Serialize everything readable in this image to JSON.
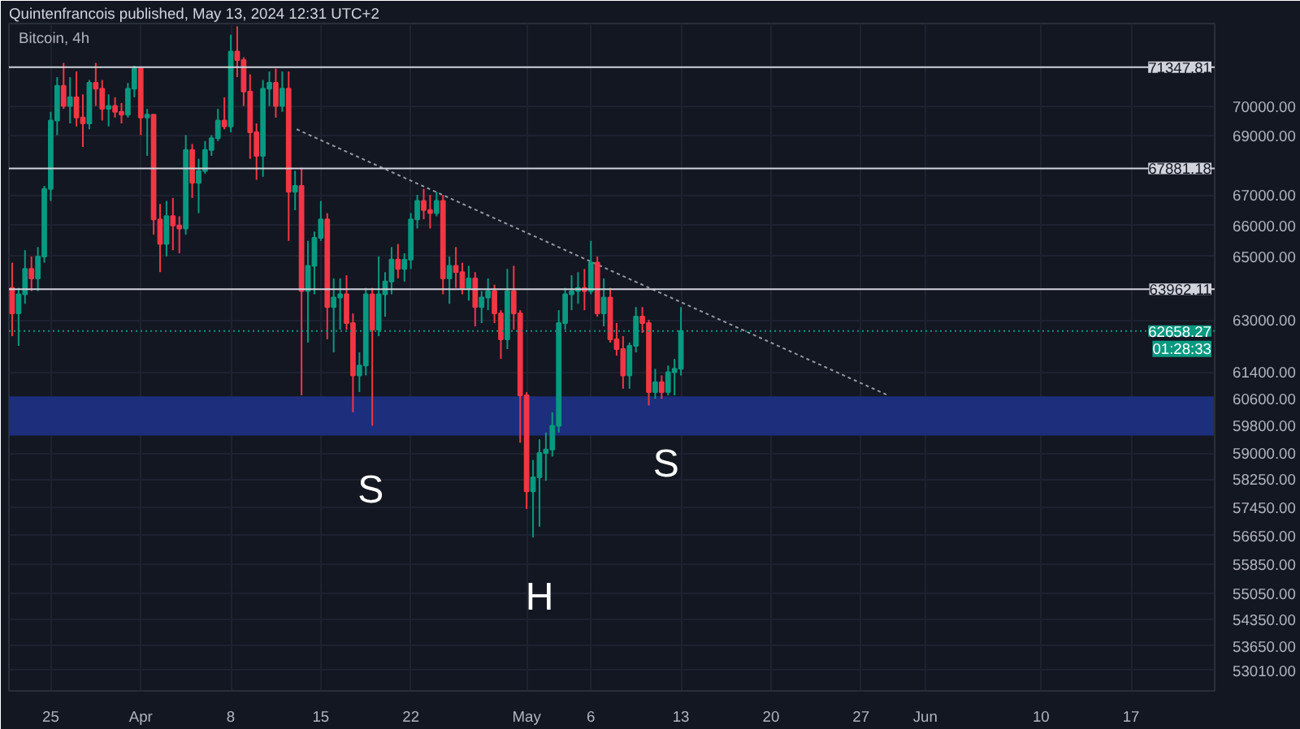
{
  "chart_data": {
    "type": "candlestick",
    "title": "Bitcoin, 4h",
    "annotations": [
      "Quintenfrancois published, May 13, 2024 12:31 UTC+2",
      "01:28:33",
      "S",
      "H",
      "S"
    ],
    "x": [
      "2024-03-22T00:00",
      "2024-03-22T12:00",
      "2024-03-23T00:00",
      "2024-03-23T12:00",
      "2024-03-24T00:00",
      "2024-03-24T12:00",
      "2024-03-25T00:00",
      "2024-03-25T12:00",
      "2024-03-26T00:00",
      "2024-03-26T12:00",
      "2024-03-27T00:00",
      "2024-03-27T12:00",
      "2024-03-28T00:00",
      "2024-03-28T12:00",
      "2024-03-29T00:00",
      "2024-03-29T12:00",
      "2024-03-30T00:00",
      "2024-03-30T12:00",
      "2024-03-31T00:00",
      "2024-03-31T12:00",
      "2024-04-01T00:00",
      "2024-04-01T12:00",
      "2024-04-02T00:00",
      "2024-04-02T12:00",
      "2024-04-03T00:00",
      "2024-04-03T12:00",
      "2024-04-04T00:00",
      "2024-04-04T12:00",
      "2024-04-05T00:00",
      "2024-04-05T12:00",
      "2024-04-06T00:00",
      "2024-04-06T12:00",
      "2024-04-07T00:00",
      "2024-04-07T12:00",
      "2024-04-08T00:00",
      "2024-04-08T12:00",
      "2024-04-09T00:00",
      "2024-04-09T12:00",
      "2024-04-10T00:00",
      "2024-04-10T12:00",
      "2024-04-11T00:00",
      "2024-04-11T12:00",
      "2024-04-12T00:00",
      "2024-04-12T12:00",
      "2024-04-13T00:00",
      "2024-04-13T12:00",
      "2024-04-14T00:00",
      "2024-04-14T12:00",
      "2024-04-15T00:00",
      "2024-04-15T12:00",
      "2024-04-16T00:00",
      "2024-04-16T12:00",
      "2024-04-17T00:00",
      "2024-04-17T12:00",
      "2024-04-18T00:00",
      "2024-04-18T12:00",
      "2024-04-19T00:00",
      "2024-04-19T12:00",
      "2024-04-20T00:00",
      "2024-04-20T12:00",
      "2024-04-21T00:00",
      "2024-04-21T12:00",
      "2024-04-22T00:00",
      "2024-04-22T12:00",
      "2024-04-23T00:00",
      "2024-04-23T12:00",
      "2024-04-24T00:00",
      "2024-04-24T12:00",
      "2024-04-25T00:00",
      "2024-04-25T12:00",
      "2024-04-26T00:00",
      "2024-04-26T12:00",
      "2024-04-27T00:00",
      "2024-04-27T12:00",
      "2024-04-28T00:00",
      "2024-04-28T12:00",
      "2024-04-29T00:00",
      "2024-04-29T12:00",
      "2024-04-30T00:00",
      "2024-04-30T12:00",
      "2024-05-01T00:00",
      "2024-05-01T12:00",
      "2024-05-02T00:00",
      "2024-05-02T12:00",
      "2024-05-03T00:00",
      "2024-05-03T12:00",
      "2024-05-04T00:00",
      "2024-05-04T12:00",
      "2024-05-05T00:00",
      "2024-05-05T12:00",
      "2024-05-06T00:00",
      "2024-05-06T12:00",
      "2024-05-07T00:00",
      "2024-05-07T12:00",
      "2024-05-08T00:00",
      "2024-05-08T12:00",
      "2024-05-09T00:00",
      "2024-05-09T12:00",
      "2024-05-10T00:00",
      "2024-05-10T12:00",
      "2024-05-11T00:00",
      "2024-05-11T12:00",
      "2024-05-12T00:00",
      "2024-05-12T12:00",
      "2024-05-13T00:00"
    ],
    "ohlc": [
      [
        64000,
        64800,
        62500,
        63200
      ],
      [
        63200,
        64000,
        62200,
        63800
      ],
      [
        63800,
        65200,
        63500,
        64600
      ],
      [
        64600,
        65000,
        63900,
        64300
      ],
      [
        64300,
        65300,
        63900,
        65000
      ],
      [
        65000,
        67300,
        64800,
        67200
      ],
      [
        67200,
        69800,
        66800,
        69500
      ],
      [
        69500,
        71000,
        69000,
        70700
      ],
      [
        70700,
        71500,
        69900,
        70000
      ],
      [
        70000,
        71000,
        69400,
        70300
      ],
      [
        70300,
        71200,
        69300,
        69600
      ],
      [
        69600,
        70400,
        68600,
        69400
      ],
      [
        69400,
        70900,
        69200,
        70800
      ],
      [
        70800,
        71500,
        70000,
        70600
      ],
      [
        70600,
        70900,
        69500,
        69900
      ],
      [
        69900,
        70400,
        69300,
        70000
      ],
      [
        70000,
        70300,
        69600,
        69800
      ],
      [
        69800,
        70100,
        69400,
        69700
      ],
      [
        69700,
        70800,
        69600,
        70600
      ],
      [
        70600,
        71400,
        70300,
        71300
      ],
      [
        71300,
        71300,
        69000,
        69600
      ],
      [
        69600,
        69900,
        68300,
        69700
      ],
      [
        69700,
        69700,
        65700,
        66200
      ],
      [
        66200,
        66700,
        64500,
        65400
      ],
      [
        65400,
        66800,
        65000,
        66300
      ],
      [
        66300,
        66900,
        65200,
        66000
      ],
      [
        66000,
        66300,
        65100,
        65900
      ],
      [
        65900,
        69000,
        65700,
        68500
      ],
      [
        68500,
        68700,
        66900,
        67400
      ],
      [
        67400,
        68200,
        66400,
        67800
      ],
      [
        67800,
        68800,
        67700,
        68500
      ],
      [
        68500,
        69000,
        68300,
        68900
      ],
      [
        68900,
        69900,
        68800,
        69500
      ],
      [
        69500,
        70300,
        69200,
        69300
      ],
      [
        69300,
        72500,
        69100,
        71900
      ],
      [
        71900,
        72800,
        71000,
        71600
      ],
      [
        71600,
        71700,
        70000,
        70500
      ],
      [
        70500,
        71100,
        68200,
        69100
      ],
      [
        69100,
        69400,
        67500,
        68300
      ],
      [
        68300,
        70900,
        67600,
        70600
      ],
      [
        70600,
        71200,
        70000,
        70800
      ],
      [
        70800,
        71300,
        69600,
        70000
      ],
      [
        70000,
        71200,
        69800,
        70600
      ],
      [
        70600,
        71200,
        65500,
        67100
      ],
      [
        67100,
        67800,
        66500,
        67300
      ],
      [
        67300,
        67900,
        60700,
        63900
      ],
      [
        63900,
        65500,
        62300,
        64700
      ],
      [
        64700,
        65800,
        63800,
        65600
      ],
      [
        65600,
        66800,
        65500,
        66200
      ],
      [
        66200,
        66400,
        62400,
        63400
      ],
      [
        63400,
        64300,
        62000,
        63700
      ],
      [
        63700,
        64300,
        62700,
        63800
      ],
      [
        63800,
        64400,
        62700,
        62900
      ],
      [
        62900,
        63200,
        60200,
        61300
      ],
      [
        61300,
        62000,
        60800,
        61600
      ],
      [
        61600,
        64000,
        61300,
        63800
      ],
      [
        63800,
        64000,
        59800,
        62700
      ],
      [
        62700,
        65000,
        62500,
        63800
      ],
      [
        63800,
        64500,
        63100,
        64200
      ],
      [
        64200,
        65300,
        63800,
        64900
      ],
      [
        64900,
        65400,
        64300,
        64600
      ],
      [
        64600,
        65100,
        64200,
        64900
      ],
      [
        64900,
        66400,
        64600,
        66200
      ],
      [
        66200,
        67000,
        65900,
        66800
      ],
      [
        66800,
        67200,
        66200,
        66500
      ],
      [
        66500,
        67000,
        65900,
        66400
      ],
      [
        66400,
        67100,
        66300,
        66800
      ],
      [
        66800,
        67000,
        63800,
        64300
      ],
      [
        64300,
        65000,
        63500,
        64700
      ],
      [
        64700,
        65300,
        64000,
        64500
      ],
      [
        64500,
        64800,
        63800,
        64000
      ],
      [
        64000,
        64700,
        63600,
        64300
      ],
      [
        64300,
        64500,
        62800,
        63400
      ],
      [
        63400,
        63900,
        62900,
        63700
      ],
      [
        63700,
        64300,
        63300,
        63900
      ],
      [
        63900,
        64100,
        62900,
        63200
      ],
      [
        63200,
        63300,
        61800,
        62400
      ],
      [
        62400,
        64600,
        62100,
        63900
      ],
      [
        63900,
        64700,
        62700,
        63200
      ],
      [
        63200,
        63300,
        59300,
        60700
      ],
      [
        60700,
        60800,
        57400,
        57900
      ],
      [
        57900,
        58800,
        56600,
        58300
      ],
      [
        58300,
        59400,
        56900,
        59000
      ],
      [
        59000,
        59600,
        58200,
        59100
      ],
      [
        59100,
        60200,
        58900,
        59800
      ],
      [
        59800,
        63300,
        59600,
        62900
      ],
      [
        62900,
        64000,
        62700,
        63800
      ],
      [
        63800,
        64400,
        63300,
        63900
      ],
      [
        63900,
        64500,
        63500,
        64000
      ],
      [
        64000,
        64600,
        63300,
        63900
      ],
      [
        63900,
        65500,
        63800,
        64800
      ],
      [
        64800,
        65000,
        63100,
        63200
      ],
      [
        63200,
        64300,
        62800,
        63700
      ],
      [
        63700,
        64000,
        62300,
        62400
      ],
      [
        62400,
        62900,
        61900,
        62100
      ],
      [
        62100,
        62500,
        60900,
        61300
      ],
      [
        61300,
        62300,
        60900,
        62200
      ],
      [
        62200,
        63400,
        62000,
        63100
      ],
      [
        63100,
        63400,
        62600,
        62900
      ],
      [
        62900,
        63000,
        60400,
        60800
      ],
      [
        60800,
        61500,
        60600,
        61100
      ],
      [
        61100,
        61300,
        60600,
        60800
      ],
      [
        60800,
        61600,
        60700,
        61400
      ],
      [
        61400,
        61800,
        60700,
        61500
      ],
      [
        61500,
        63400,
        61300,
        62658.27
      ]
    ],
    "colors": [
      "#f23645",
      "#089981",
      "#089981",
      "#f23645",
      "#089981",
      "#089981",
      "#089981",
      "#089981",
      "#f23645",
      "#089981",
      "#f23645",
      "#f23645",
      "#089981",
      "#f23645",
      "#f23645",
      "#089981",
      "#f23645",
      "#f23645",
      "#089981",
      "#089981",
      "#f23645",
      "#089981",
      "#f23645",
      "#f23645",
      "#089981",
      "#f23645",
      "#f23645",
      "#089981",
      "#f23645",
      "#089981",
      "#089981",
      "#089981",
      "#089981",
      "#f23645",
      "#089981",
      "#f23645",
      "#f23645",
      "#f23645",
      "#f23645",
      "#089981",
      "#089981",
      "#f23645",
      "#089981",
      "#f23645",
      "#089981",
      "#f23645",
      "#089981",
      "#089981",
      "#089981",
      "#f23645",
      "#089981",
      "#089981",
      "#f23645",
      "#f23645",
      "#089981",
      "#089981",
      "#f23645",
      "#089981",
      "#089981",
      "#089981",
      "#f23645",
      "#089981",
      "#089981",
      "#089981",
      "#f23645",
      "#f23645",
      "#089981",
      "#f23645",
      "#089981",
      "#f23645",
      "#f23645",
      "#089981",
      "#f23645",
      "#089981",
      "#089981",
      "#f23645",
      "#f23645",
      "#089981",
      "#f23645",
      "#f23645",
      "#f23645",
      "#089981",
      "#089981",
      "#089981",
      "#089981",
      "#089981",
      "#089981",
      "#089981",
      "#089981",
      "#f23645",
      "#089981",
      "#f23645",
      "#089981",
      "#f23645",
      "#f23645",
      "#f23645",
      "#089981",
      "#089981",
      "#f23645",
      "#f23645",
      "#089981",
      "#f23645",
      "#089981",
      "#089981",
      "#089981"
    ],
    "series": [
      {
        "type": "line",
        "line_style": "dashed",
        "color": "#9598a1",
        "x": [
          "2024-04-13T03:00",
          "2024-05-29T00:00"
        ],
        "values": [
          69200,
          60720
        ]
      }
    ],
    "xlim": [
      "2024-03-21T18:00",
      "2024-06-23T12:00"
    ],
    "ylim": [
      52480,
      72900
    ],
    "log": true,
    "grid": true,
    "xticks": [
      {
        "value": "2024-03-25",
        "label": "25"
      },
      {
        "value": "2024-04-01",
        "label": "Apr"
      },
      {
        "value": "2024-04-08",
        "label": "8"
      },
      {
        "value": "2024-04-15",
        "label": "15"
      },
      {
        "value": "2024-04-22",
        "label": "22"
      },
      {
        "value": "2024-05-01",
        "label": "May"
      },
      {
        "value": "2024-05-06",
        "label": "6"
      },
      {
        "value": "2024-05-13",
        "label": "13"
      },
      {
        "value": "2024-05-20",
        "label": "20"
      },
      {
        "value": "2024-05-27",
        "label": "27"
      },
      {
        "value": "2024-06-01",
        "label": "Jun"
      },
      {
        "value": "2024-06-10",
        "label": "10"
      },
      {
        "value": "2024-06-17",
        "label": "17"
      }
    ],
    "yticks": [
      {
        "value": 70000,
        "label": "70000.00"
      },
      {
        "value": 69000,
        "label": "69000.00"
      },
      {
        "value": 67000,
        "label": "67000.00"
      },
      {
        "value": 66000,
        "label": "66000.00"
      },
      {
        "value": 65000,
        "label": "65000.00"
      },
      {
        "value": 63000,
        "label": "63000.00"
      },
      {
        "value": 61400,
        "label": "61400.00"
      },
      {
        "value": 60600,
        "label": "60600.00"
      },
      {
        "value": 59800,
        "label": "59800.00"
      },
      {
        "value": 59000,
        "label": "59000.00"
      },
      {
        "value": 58250,
        "label": "58250.00"
      },
      {
        "value": 57450,
        "label": "57450.00"
      },
      {
        "value": 56650,
        "label": "56650.00"
      },
      {
        "value": 55850,
        "label": "55850.00"
      },
      {
        "value": 55050,
        "label": "55050.00"
      },
      {
        "value": 54350,
        "label": "54350.00"
      },
      {
        "value": 53650,
        "label": "53650.00"
      },
      {
        "value": 53010,
        "label": "53010.00"
      }
    ],
    "ref_lines": [
      {
        "axis": "y",
        "value": 71347.81,
        "label": "71347.81",
        "color": "#d1d4dc"
      },
      {
        "axis": "y",
        "value": 67881.18,
        "label": "67881.18",
        "color": "#d1d4dc"
      },
      {
        "axis": "y",
        "value": 63962.11,
        "label": "63962.11",
        "color": "#d1d4dc"
      },
      {
        "axis": "y",
        "value": 62658.27,
        "label": "62658.27",
        "color": "#089981",
        "line_style": "dotted"
      }
    ],
    "bands": [
      {
        "axis": "y",
        "from": 59510,
        "to": 60670,
        "color": "#1c2e7c"
      }
    ]
  }
}
